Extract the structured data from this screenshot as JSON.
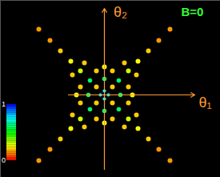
{
  "chart_data": {
    "type": "heatmap",
    "title": "B=0",
    "x_label": "θ₁",
    "y_label": "θ₂",
    "xlim": [
      -1.3,
      1.45
    ],
    "ylim": [
      -1.03,
      1.18
    ],
    "xticks": [],
    "yticks": [],
    "tick_labels": false,
    "grid": false,
    "cells": [
      [
        0.82,
        0.82,
        0.15
      ],
      [
        -0.82,
        0.82,
        0.15
      ],
      [
        0.82,
        -0.82,
        0.15
      ],
      [
        -0.82,
        -0.82,
        0.15
      ],
      [
        0.68,
        0.68,
        0.15
      ],
      [
        -0.68,
        0.68,
        0.15
      ],
      [
        0.68,
        -0.68,
        0.15
      ],
      [
        -0.68,
        -0.68,
        0.15
      ],
      [
        0.55,
        0.55,
        0.2
      ],
      [
        -0.55,
        0.55,
        0.2
      ],
      [
        0.55,
        -0.55,
        0.2
      ],
      [
        -0.55,
        -0.55,
        0.2
      ],
      [
        0.4,
        0.25,
        0.2
      ],
      [
        -0.4,
        0.25,
        0.2
      ],
      [
        0.4,
        -0.25,
        0.2
      ],
      [
        -0.4,
        -0.25,
        0.2
      ],
      [
        0.25,
        0.4,
        0.2
      ],
      [
        -0.25,
        0.4,
        0.2
      ],
      [
        0.25,
        -0.4,
        0.2
      ],
      [
        -0.25,
        -0.4,
        0.2
      ],
      [
        0.3,
        0.1,
        0.2
      ],
      [
        0.3,
        -0.1,
        0.2
      ],
      [
        -0.3,
        0.1,
        0.2
      ],
      [
        -0.3,
        -0.1,
        0.2
      ],
      [
        0.1,
        0.3,
        0.2
      ],
      [
        -0.1,
        0.3,
        0.2
      ],
      [
        0.1,
        -0.3,
        0.2
      ],
      [
        -0.1,
        -0.3,
        0.2
      ],
      [
        0.1,
        0.1,
        0.2
      ],
      [
        -0.1,
        0.1,
        0.2
      ],
      [
        0.1,
        -0.1,
        0.2
      ],
      [
        -0.1,
        -0.1,
        0.2
      ],
      [
        0.42,
        0.42,
        0.25
      ],
      [
        -0.42,
        0.42,
        0.25
      ],
      [
        0.42,
        -0.42,
        0.25
      ],
      [
        -0.42,
        -0.42,
        0.25
      ],
      [
        0.35,
        0,
        0.25
      ],
      [
        -0.35,
        0,
        0.25
      ],
      [
        0,
        0.35,
        0.25
      ],
      [
        0,
        -0.35,
        0.25
      ],
      [
        0.3,
        0.3,
        0.3
      ],
      [
        -0.3,
        0.3,
        0.3
      ],
      [
        0.3,
        -0.3,
        0.3
      ],
      [
        -0.3,
        -0.3,
        0.3
      ],
      [
        0.2,
        0,
        0.6
      ],
      [
        -0.2,
        0,
        0.6
      ],
      [
        0,
        0.2,
        0.6
      ],
      [
        0,
        -0.2,
        0.6
      ],
      [
        0.18,
        0.18,
        0.6
      ],
      [
        -0.18,
        0.18,
        0.6
      ],
      [
        0.18,
        -0.18,
        0.6
      ],
      [
        -0.18,
        -0.18,
        0.6
      ],
      [
        0.05,
        0,
        0.75
      ],
      [
        -0.05,
        0,
        0.75
      ],
      [
        0,
        0.05,
        0.75
      ],
      [
        0,
        -0.05,
        0.75
      ],
      [
        0,
        0,
        1
      ]
    ],
    "colorbar": {
      "range": [
        0,
        1
      ],
      "ticks": [
        0,
        1
      ],
      "colors": [
        "#ff0000",
        "#ffff00",
        "#00ff00",
        "#00ffff",
        "#0000ff"
      ]
    }
  }
}
